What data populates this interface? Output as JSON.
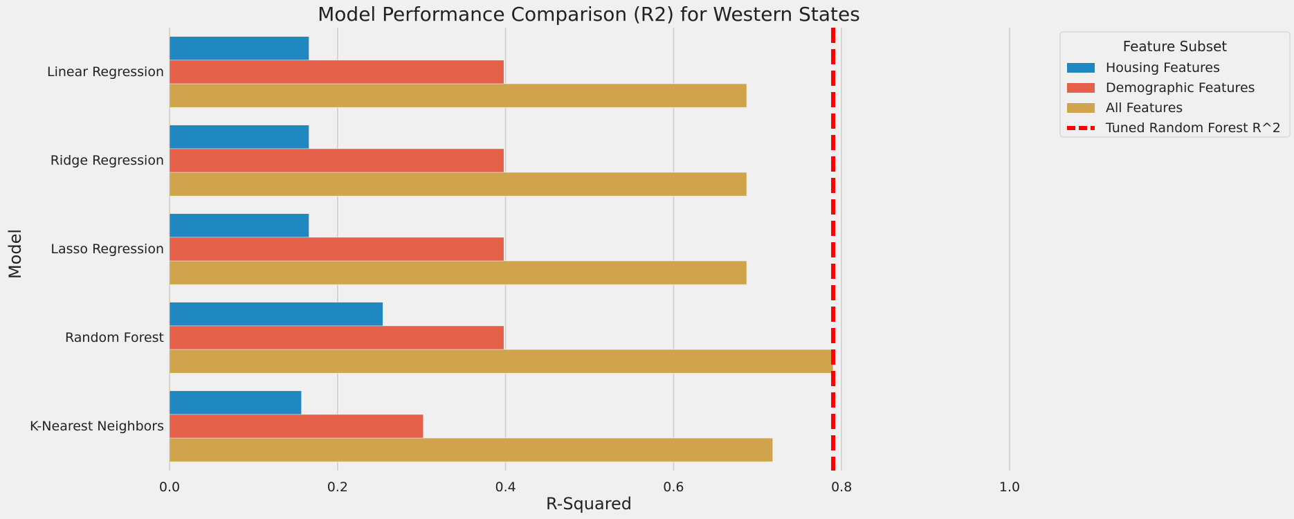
{
  "chart_data": {
    "type": "bar",
    "orientation": "horizontal",
    "title": "Model Performance Comparison (R2) for Western States",
    "xlabel": "R-Squared",
    "ylabel": "Model",
    "xlim": [
      0,
      1.0
    ],
    "xticks": [
      0.0,
      0.2,
      0.4,
      0.6,
      0.8,
      1.0
    ],
    "xtick_labels": [
      "0.0",
      "0.2",
      "0.4",
      "0.6",
      "0.8",
      "1.0"
    ],
    "grid": true,
    "categories": [
      "Linear Regression",
      "Ridge Regression",
      "Lasso Regression",
      "Random Forest",
      "K-Nearest Neighbors"
    ],
    "series": [
      {
        "name": "Housing Features",
        "color": "#1f88c0",
        "values": [
          0.166,
          0.166,
          0.166,
          0.254,
          0.157
        ]
      },
      {
        "name": "Demographic Features",
        "color": "#e5604a",
        "values": [
          0.398,
          0.398,
          0.398,
          0.398,
          0.302
        ]
      },
      {
        "name": "All Features",
        "color": "#d0a44c",
        "values": [
          0.687,
          0.687,
          0.687,
          0.79,
          0.718
        ]
      }
    ],
    "reference_line": {
      "name": "Tuned Random Forest R^2",
      "value": 0.79,
      "color": "#ff0000",
      "style": "dashed"
    },
    "legend": {
      "title": "Feature Subset",
      "placement": "outside-right"
    }
  }
}
